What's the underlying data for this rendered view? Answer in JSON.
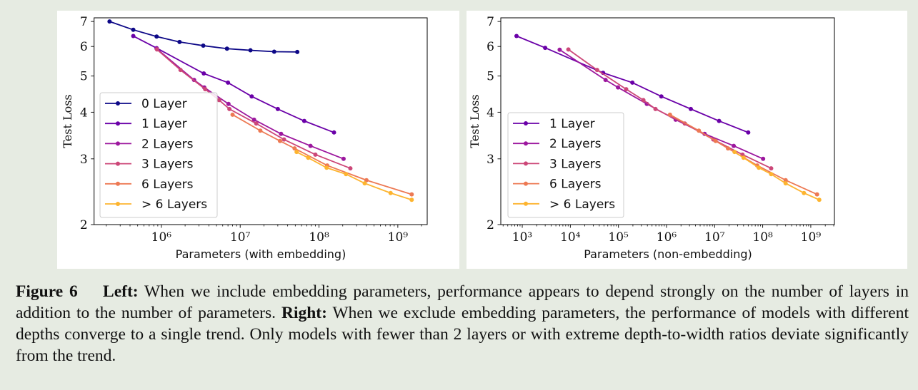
{
  "chart_data": [
    {
      "type": "line",
      "xlabel": "Parameters (with embedding)",
      "ylabel": "Test Loss",
      "xscale": "log",
      "yscale": "log",
      "xlim": [
        140000.0,
        2360000000.0
      ],
      "ylim": [
        2,
        7.16
      ],
      "x_ticks": [
        1000000.0,
        10000000.0,
        100000000.0,
        1000000000.0
      ],
      "x_tick_labels": [
        "10⁶",
        "10⁷",
        "10⁸",
        "10⁹"
      ],
      "y_ticks": [
        2,
        3,
        4,
        5,
        6,
        7
      ],
      "y_tick_labels": [
        "2",
        "3",
        "4",
        "5",
        "6",
        "7"
      ],
      "grid": false,
      "legend": "center-left",
      "series": [
        {
          "name": "0 Layer",
          "color": "#0d0887",
          "x": [
            220000.0,
            440000.0,
            870000.0,
            1700000.0,
            3400000.0,
            6800000.0,
            13500000.0,
            27000000.0,
            53000000.0
          ],
          "y": [
            7.0,
            6.65,
            6.38,
            6.17,
            6.03,
            5.92,
            5.86,
            5.81,
            5.8
          ]
        },
        {
          "name": "1 Layer",
          "color": "#6a00a8",
          "x": [
            440000.0,
            870000.0,
            3450000.0,
            7000000.0,
            14000000.0,
            30000000.0,
            65000000.0,
            155000000.0
          ],
          "y": [
            6.4,
            5.94,
            5.08,
            4.8,
            4.41,
            4.08,
            3.79,
            3.53
          ]
        },
        {
          "name": "2 Layers",
          "color": "#9c179e",
          "x": [
            870000.0,
            2600000.0,
            3500000.0,
            7100000.0,
            15000000.0,
            33000000.0,
            78000000.0,
            205000000.0
          ],
          "y": [
            5.92,
            4.88,
            4.66,
            4.21,
            3.82,
            3.5,
            3.25,
            3.0
          ]
        },
        {
          "name": "3 Layers",
          "color": "#cc4778",
          "x": [
            880000.0,
            1750000.0,
            3600000.0,
            5400000.0,
            7300000.0,
            16000000.0,
            36000000.0,
            90000000.0,
            250000000.0
          ],
          "y": [
            5.89,
            5.19,
            4.61,
            4.31,
            4.08,
            3.73,
            3.38,
            3.08,
            2.83
          ]
        },
        {
          "name": "6 Layers",
          "color": "#ed7953",
          "x": [
            8000000.0,
            18000000.0,
            32000000.0,
            49000000.0,
            127000000.0,
            400000000.0,
            1500000000.0
          ],
          "y": [
            3.94,
            3.57,
            3.35,
            3.2,
            2.88,
            2.63,
            2.41
          ]
        },
        {
          "name": "> 6 Layers",
          "color": "#fdb42f",
          "x": [
            52000000.0,
            73000000.0,
            125000000.0,
            220000000.0,
            380000000.0,
            810000000.0,
            1500000000.0
          ],
          "y": [
            3.13,
            3.02,
            2.84,
            2.73,
            2.58,
            2.43,
            2.33
          ]
        }
      ]
    },
    {
      "type": "line",
      "xlabel": "Parameters (non-embedding)",
      "ylabel": "Test Loss",
      "xscale": "log",
      "yscale": "log",
      "xlim": [
        358,
        3100000000.0
      ],
      "ylim": [
        2,
        7.16
      ],
      "x_ticks": [
        1000.0,
        10000.0,
        100000.0,
        1000000.0,
        10000000.0,
        100000000.0,
        1000000000.0
      ],
      "x_tick_labels": [
        "10³",
        "10⁴",
        "10⁵",
        "10⁶",
        "10⁷",
        "10⁸",
        "10⁹"
      ],
      "y_ticks": [
        2,
        3,
        4,
        5,
        6,
        7
      ],
      "y_tick_labels": [
        "2",
        "3",
        "4",
        "5",
        "6",
        "7"
      ],
      "grid": false,
      "legend": "lower-left",
      "series": [
        {
          "name": "1 Layer",
          "color": "#6a00a8",
          "x": [
            760,
            3000,
            48000.0,
            195000.0,
            780000.0,
            3200000.0,
            12400000.0,
            50000000.0
          ],
          "y": [
            6.4,
            5.95,
            5.1,
            4.8,
            4.41,
            4.08,
            3.79,
            3.53
          ]
        },
        {
          "name": "2 Layers",
          "color": "#9c179e",
          "x": [
            6000,
            54000.0,
            98000.0,
            390000.0,
            1550000.0,
            6200000.0,
            25000000.0,
            102000000.0
          ],
          "y": [
            5.88,
            4.88,
            4.66,
            4.21,
            3.82,
            3.5,
            3.25,
            3.0
          ]
        },
        {
          "name": "3 Layers",
          "color": "#cc4778",
          "x": [
            9100,
            36000.0,
            145000.0,
            330000.0,
            590000.0,
            2400000.0,
            9400000.0,
            38000000.0,
            150000000.0
          ],
          "y": [
            5.89,
            5.19,
            4.61,
            4.31,
            4.08,
            3.73,
            3.38,
            3.08,
            2.83
          ]
        },
        {
          "name": "6 Layers",
          "color": "#ed7953",
          "x": [
            1180000.0,
            4700000.0,
            10500000.0,
            19000000.0,
            77000000.0,
            300000000.0,
            1350000000.0
          ],
          "y": [
            3.94,
            3.57,
            3.35,
            3.2,
            2.88,
            2.63,
            2.41
          ]
        },
        {
          "name": "> 6 Layers",
          "color": "#fdb42f",
          "x": [
            26000000.0,
            40000000.0,
            83000000.0,
            150000000.0,
            300000000.0,
            720000000.0,
            1500000000.0
          ],
          "y": [
            3.13,
            3.02,
            2.84,
            2.73,
            2.58,
            2.43,
            2.33
          ]
        }
      ]
    }
  ],
  "caption": {
    "figure_label": "Figure 6",
    "left_label": "Left:",
    "left_text": "When we include embedding parameters, performance appears to depend strongly on the number of layers in addition to the number of parameters.",
    "right_label": "Right:",
    "right_text": "When we exclude embedding parameters, the performance of models with different depths converge to a single trend. Only models with fewer than 2 layers or with extreme depth-to-width ratios deviate significantly from the trend."
  },
  "colors": {
    "background": "#e6ebe2",
    "panel": "#ffffff"
  }
}
